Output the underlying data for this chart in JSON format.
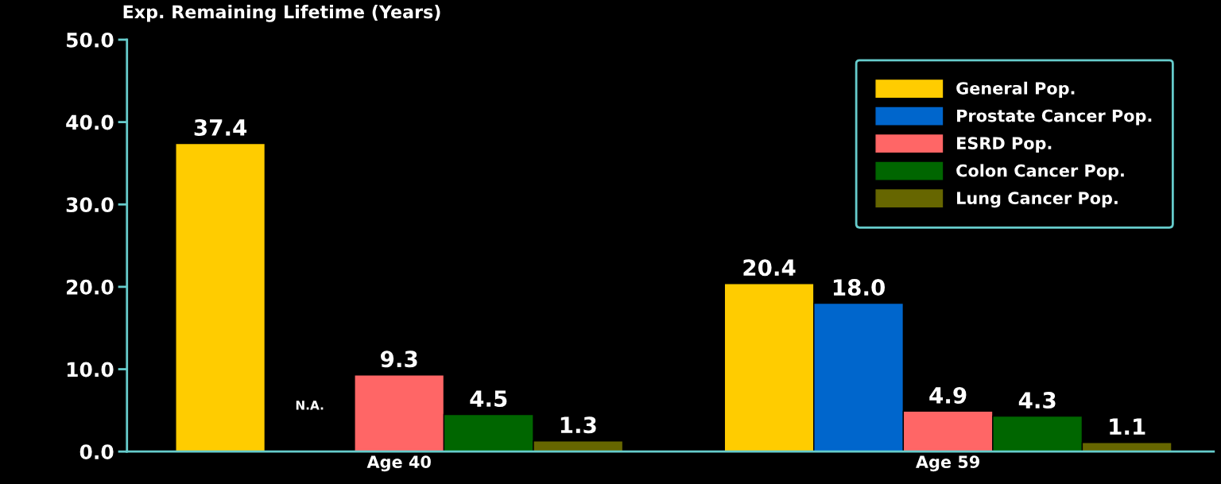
{
  "chart_data": {
    "type": "bar",
    "ylabel": "Exp. Remaining Lifetime (Years)",
    "categories": [
      "Age 40",
      "Age 59"
    ],
    "series": [
      {
        "name": "General Pop.",
        "color": "#ffcc00",
        "values": [
          37.4,
          20.4
        ],
        "value_labels": [
          "37.4",
          "20.4"
        ]
      },
      {
        "name": "Prostate Cancer Pop.",
        "color": "#0066cc",
        "values": [
          null,
          18.0
        ],
        "value_labels": [
          "N.A.",
          "18.0"
        ]
      },
      {
        "name": "ESRD Pop.",
        "color": "#ff6666",
        "values": [
          9.3,
          4.9
        ],
        "value_labels": [
          "9.3",
          "4.9"
        ]
      },
      {
        "name": "Colon Cancer Pop.",
        "color": "#006600",
        "values": [
          4.5,
          4.3
        ],
        "value_labels": [
          "4.5",
          "4.3"
        ]
      },
      {
        "name": "Lung Cancer Pop.",
        "color": "#666600",
        "values": [
          1.3,
          1.1
        ],
        "value_labels": [
          "1.3",
          "1.1"
        ]
      }
    ],
    "ylim": [
      0,
      50
    ],
    "yticks": [
      {
        "value": 0,
        "label": "0.0"
      },
      {
        "value": 10,
        "label": "10.0"
      },
      {
        "value": 20,
        "label": "20.0"
      },
      {
        "value": 30,
        "label": "30.0"
      },
      {
        "value": 40,
        "label": "40.0"
      },
      {
        "value": 50,
        "label": "50.0"
      }
    ],
    "grid": false,
    "legend": "top right"
  }
}
